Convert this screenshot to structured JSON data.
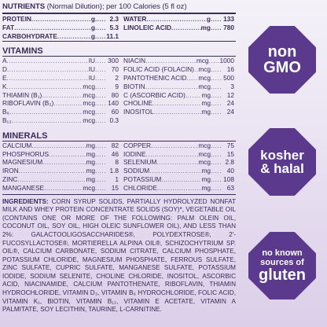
{
  "header": {
    "title": "NUTRIENTS",
    "subtitle": "(Normal Dilution); per 100 Calories (5 fl oz)"
  },
  "top_rows": {
    "left": [
      {
        "name": "PROTEIN",
        "unit": "g",
        "value": "2.3"
      },
      {
        "name": "FAT",
        "unit": "g",
        "value": "5.3"
      },
      {
        "name": "CARBOHYDRATE",
        "unit": "g",
        "value": "11.1"
      }
    ],
    "right": [
      {
        "name": "WATER",
        "unit": "g",
        "value": "133"
      },
      {
        "name": "LINOLEIC ACID",
        "unit": "mg",
        "value": "780"
      }
    ]
  },
  "vitamins": {
    "title": "VITAMINS",
    "left": [
      {
        "name": "A",
        "unit": "IU",
        "value": "300"
      },
      {
        "name": "D",
        "unit": "IU",
        "value": "70"
      },
      {
        "name": "E",
        "unit": "IU",
        "value": "2"
      },
      {
        "name": "K",
        "unit": "mcg",
        "value": "9"
      },
      {
        "name": "THIAMIN (B₁)",
        "unit": "mcg",
        "value": "80"
      },
      {
        "name": "RIBOFLAVIN (B₂)",
        "unit": "mcg",
        "value": "140"
      },
      {
        "name": "B₆",
        "unit": "mcg",
        "value": "60"
      },
      {
        "name": "B₁₂",
        "unit": "mcg",
        "value": "0.3"
      }
    ],
    "right": [
      {
        "name": "NIACIN",
        "unit": "mcg",
        "value": "1000"
      },
      {
        "name": "FOLIC ACID (FOLACIN)",
        "unit": "mcg",
        "value": "16"
      },
      {
        "name": "PANTOTHENIC ACID",
        "unit": "mcg",
        "value": "500"
      },
      {
        "name": "BIOTIN",
        "unit": "mcg",
        "value": "3"
      },
      {
        "name": "C (ASCORBIC ACID)",
        "unit": "mg",
        "value": "12"
      },
      {
        "name": "CHOLINE",
        "unit": "mg",
        "value": "24"
      },
      {
        "name": "INOSITOL",
        "unit": "mg",
        "value": "24"
      }
    ]
  },
  "minerals": {
    "title": "MINERALS",
    "left": [
      {
        "name": "CALCIUM",
        "unit": "mg",
        "value": "82"
      },
      {
        "name": "PHOSPHORUS",
        "unit": "mg",
        "value": "46"
      },
      {
        "name": "MAGNESIUM",
        "unit": "mg",
        "value": "8"
      },
      {
        "name": "IRON",
        "unit": "mg",
        "value": "1.8"
      },
      {
        "name": "ZINC",
        "unit": "mg",
        "value": "1"
      },
      {
        "name": "MANGANESE",
        "unit": "mcg",
        "value": "15"
      }
    ],
    "right": [
      {
        "name": "COPPER",
        "unit": "mcg",
        "value": "75"
      },
      {
        "name": "IODINE",
        "unit": "mcg",
        "value": "15"
      },
      {
        "name": "SELENIUM",
        "unit": "mcg",
        "value": "2.8"
      },
      {
        "name": "SODIUM",
        "unit": "mg",
        "value": "40"
      },
      {
        "name": "POTASSIUM",
        "unit": "mg",
        "value": "108"
      },
      {
        "name": "CHLORIDE",
        "unit": "mg",
        "value": "63"
      }
    ]
  },
  "ingredients": {
    "label": "INGREDIENTS:",
    "text": "CORN SYRUP SOLIDS, PARTIALLY HYDROLYZED NONFAT MILK AND WHEY PROTEIN CONCENTRATE SOLIDS (SOY)*, VEGETABLE OIL (CONTAINS ONE OR MORE OF THE FOLLOWING: PALM OLEIN OIL, COCONUT OIL, SOY OIL, HIGH OLEIC SUNFLOWER OIL), AND LESS THAN 2%: GALACTOOLIGOSACCHARIDES®, POLYDEXTROSE®, 2'-FUCOSYLLACTOSE®, MORTIERELLA ALPINA OIL®, SCHIZOCHYTRIUM SP. OIL®, CALCIUM CARBONATE, SODIUM CITRATE, CALCIUM PHOSPHATE, POTASSIUM CHLORIDE, MAGNESIUM PHOSPHATE, FERROUS SULFATE, ZINC SULFATE, CUPRIC SULFATE, MANGANESE SULFATE, POTASSIUM IODIDE, SODIUM SELENITE, CHOLINE CHLORIDE, INOSITOL, ASCORBIC ACID, NIACINAMIDE, CALCIUM PANTOTHENATE, RIBOFLAVIN, THIAMIN HYDROCHLORIDE, VITAMIN D₃, VITAMIN B₆ HYDROCHLORIDE, FOLIC ACID, VITAMIN K₁, BIOTIN, VITAMIN B₁₂, VITAMIN E ACETATE, VITAMIN A PALMITATE, SOY LECITHIN, TAURINE, L-CARNITINE."
  },
  "badges": {
    "color": "#5b3a8e",
    "non_gmo": {
      "line1": "non",
      "line2": "GMO"
    },
    "kosher": {
      "line1": "kosher",
      "line2": "& halal"
    },
    "gluten": {
      "line1": "no known",
      "line2": "sources of",
      "line3": "gluten"
    }
  }
}
